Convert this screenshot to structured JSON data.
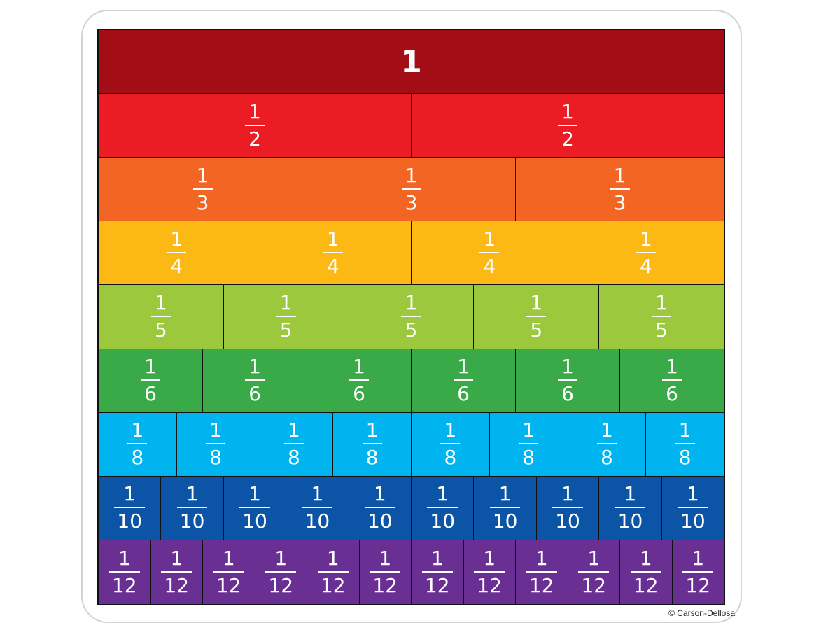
{
  "rows": [
    {
      "denominator": "1",
      "numerator": "1",
      "count": 1,
      "color": "#a30d16",
      "whole_label": "1"
    },
    {
      "denominator": "2",
      "numerator": "1",
      "count": 2,
      "color": "#ec1c24"
    },
    {
      "denominator": "3",
      "numerator": "1",
      "count": 3,
      "color": "#f26522"
    },
    {
      "denominator": "4",
      "numerator": "1",
      "count": 4,
      "color": "#fdb913"
    },
    {
      "denominator": "5",
      "numerator": "1",
      "count": 5,
      "color": "#9bc83d"
    },
    {
      "denominator": "6",
      "numerator": "1",
      "count": 6,
      "color": "#3aaa48"
    },
    {
      "denominator": "8",
      "numerator": "1",
      "count": 8,
      "color": "#00b5ef"
    },
    {
      "denominator": "10",
      "numerator": "1",
      "count": 10,
      "color": "#0c55a6"
    },
    {
      "denominator": "12",
      "numerator": "1",
      "count": 12,
      "color": "#6a2f92"
    }
  ],
  "copyright": "© Carson-Dellosa",
  "card_border_color": "#d3d3d3",
  "outline_color": "#111111"
}
